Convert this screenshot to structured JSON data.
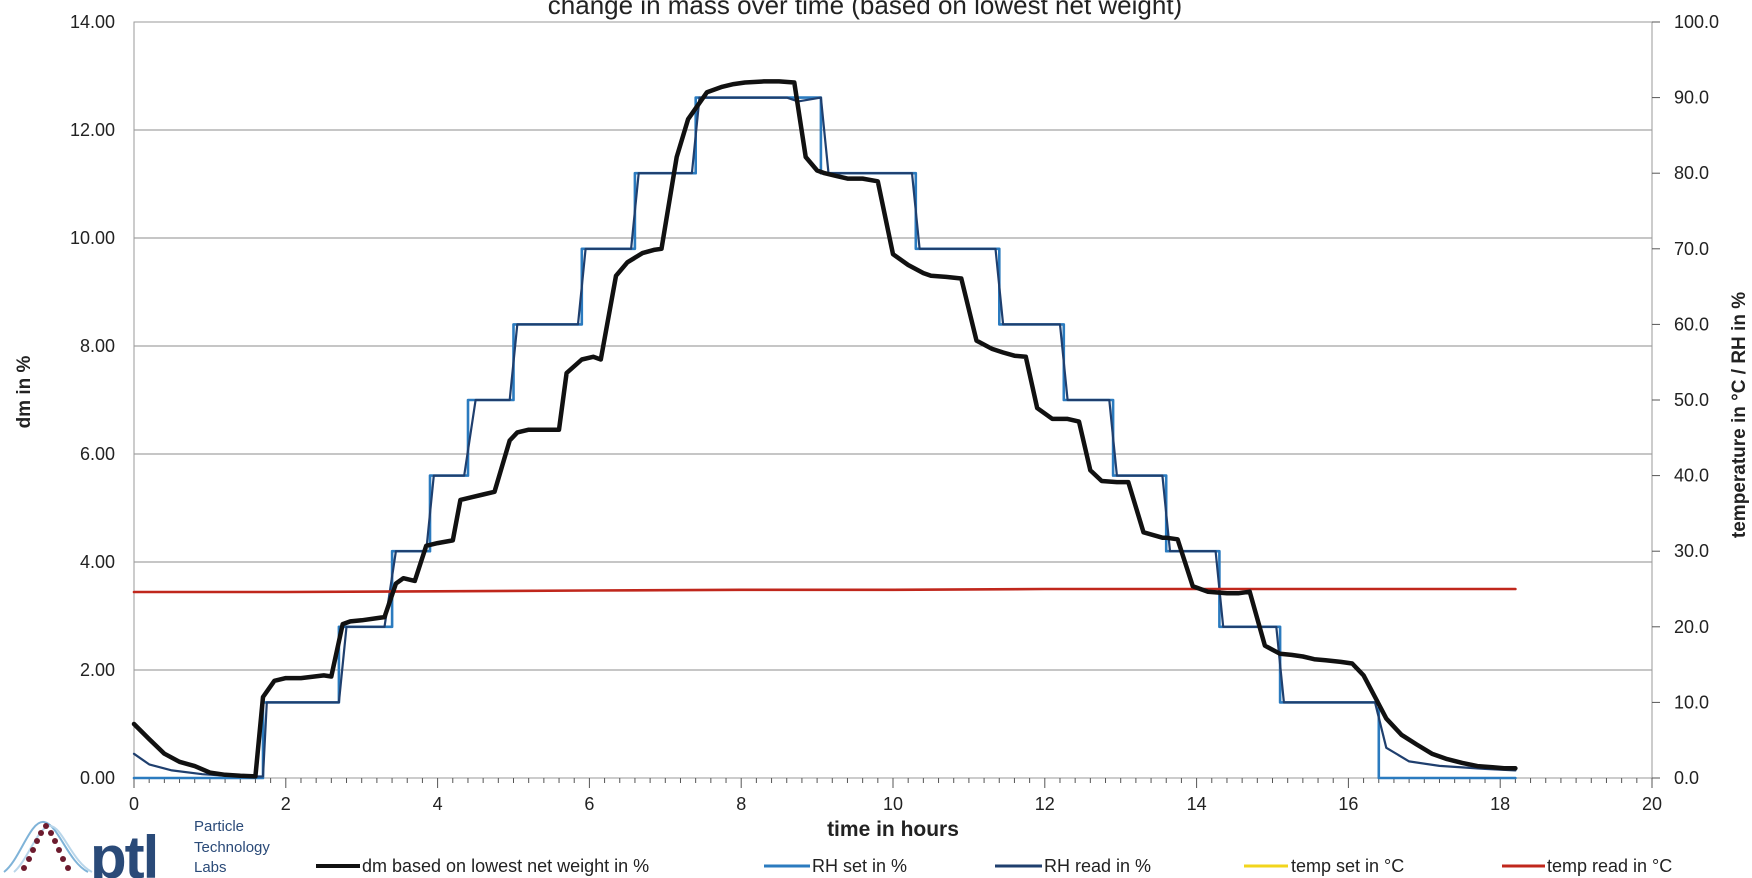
{
  "chart_data": {
    "type": "line",
    "title": "change in mass over time (based on lowest net weight)",
    "xlabel": "time in hours",
    "ylabel_left": "dm in %",
    "ylabel_right": "temperature in °C / RH in %",
    "xlim": [
      0,
      20
    ],
    "ylim_left": [
      0,
      14
    ],
    "ylim_right": [
      0,
      100
    ],
    "x_ticks": [
      "0",
      "2",
      "4",
      "6",
      "8",
      "10",
      "12",
      "14",
      "16",
      "18",
      "20"
    ],
    "y_left_ticks": [
      "0.00",
      "2.00",
      "4.00",
      "6.00",
      "8.00",
      "10.00",
      "12.00",
      "14.00"
    ],
    "y_right_ticks": [
      "0.0",
      "10.0",
      "20.0",
      "30.0",
      "40.0",
      "50.0",
      "60.0",
      "70.0",
      "80.0",
      "90.0",
      "100.0"
    ],
    "grid": true,
    "legend_position": "bottom",
    "series": [
      {
        "name": "dm based on lowest net weight in  %",
        "axis": "left",
        "color": "#111111",
        "x": [
          0,
          0.2,
          0.4,
          0.6,
          0.8,
          1.0,
          1.2,
          1.4,
          1.6,
          1.7,
          1.85,
          2.0,
          2.2,
          2.5,
          2.6,
          2.75,
          2.85,
          3.0,
          3.3,
          3.45,
          3.55,
          3.7,
          3.85,
          4.0,
          4.2,
          4.3,
          4.45,
          4.6,
          4.75,
          4.95,
          5.05,
          5.2,
          5.4,
          5.6,
          5.7,
          5.9,
          6.05,
          6.15,
          6.35,
          6.5,
          6.7,
          6.85,
          6.95,
          7.15,
          7.3,
          7.55,
          7.65,
          7.75,
          7.9,
          8.05,
          8.3,
          8.5,
          8.7,
          8.85,
          9.0,
          9.1,
          9.25,
          9.4,
          9.6,
          9.8,
          10.0,
          10.2,
          10.4,
          10.5,
          10.7,
          10.9,
          11.1,
          11.3,
          11.45,
          11.6,
          11.75,
          11.9,
          12.1,
          12.3,
          12.45,
          12.6,
          12.75,
          12.95,
          13.1,
          13.3,
          13.55,
          13.6,
          13.75,
          13.95,
          14.15,
          14.4,
          14.55,
          14.7,
          14.9,
          15.1,
          15.25,
          15.4,
          15.55,
          15.7,
          15.9,
          16.05,
          16.2,
          16.35,
          16.5,
          16.7,
          16.9,
          17.1,
          17.3,
          17.5,
          17.7,
          17.9,
          18.05,
          18.2
        ],
        "y": [
          1.0,
          0.72,
          0.45,
          0.3,
          0.22,
          0.1,
          0.06,
          0.04,
          0.03,
          1.5,
          1.8,
          1.85,
          1.85,
          1.9,
          1.88,
          2.85,
          2.9,
          2.92,
          2.98,
          3.6,
          3.7,
          3.65,
          4.3,
          4.35,
          4.4,
          5.15,
          5.2,
          5.25,
          5.3,
          6.25,
          6.4,
          6.45,
          6.45,
          6.45,
          7.5,
          7.75,
          7.8,
          7.75,
          9.3,
          9.55,
          9.72,
          9.78,
          9.8,
          11.5,
          12.2,
          12.7,
          12.75,
          12.8,
          12.85,
          12.88,
          12.9,
          12.9,
          12.88,
          11.5,
          11.25,
          11.2,
          11.15,
          11.1,
          11.1,
          11.05,
          9.7,
          9.5,
          9.35,
          9.3,
          9.28,
          9.25,
          8.1,
          7.95,
          7.88,
          7.82,
          7.8,
          6.85,
          6.65,
          6.65,
          6.6,
          5.7,
          5.5,
          5.48,
          5.48,
          4.55,
          4.45,
          4.45,
          4.42,
          3.55,
          3.45,
          3.42,
          3.42,
          3.45,
          2.45,
          2.3,
          2.28,
          2.25,
          2.2,
          2.18,
          2.15,
          2.12,
          1.9,
          1.5,
          1.1,
          0.8,
          0.62,
          0.45,
          0.35,
          0.28,
          0.22,
          0.2,
          0.18,
          0.18
        ]
      },
      {
        "name": "RH set in %",
        "axis": "right",
        "color": "#2b7bbf",
        "x": [
          0,
          1.7,
          1.7,
          2.7,
          2.7,
          3.4,
          3.4,
          3.9,
          3.9,
          4.4,
          4.4,
          5.0,
          5.0,
          5.9,
          5.9,
          6.6,
          6.6,
          7.4,
          7.4,
          8.7,
          8.7,
          9.05,
          9.05,
          10.3,
          10.3,
          11.4,
          11.4,
          12.25,
          12.25,
          12.9,
          12.9,
          13.6,
          13.6,
          14.3,
          14.3,
          15.1,
          15.1,
          16.4,
          16.4,
          18.2
        ],
        "y": [
          0,
          0,
          10,
          10,
          20,
          20,
          30,
          30,
          40,
          40,
          50,
          50,
          60,
          60,
          70,
          70,
          80,
          80,
          90,
          90,
          90,
          90,
          80,
          80,
          70,
          70,
          60,
          60,
          50,
          50,
          40,
          40,
          30,
          30,
          20,
          20,
          10,
          10,
          0,
          0
        ]
      },
      {
        "name": "RH read in %",
        "axis": "right",
        "color": "#1f3f6e",
        "x": [
          0,
          0.2,
          0.5,
          0.9,
          1.2,
          1.5,
          1.7,
          1.75,
          2.2,
          2.7,
          2.8,
          3.3,
          3.45,
          3.85,
          3.95,
          4.35,
          4.5,
          4.95,
          5.05,
          5.85,
          5.95,
          6.55,
          6.65,
          7.35,
          7.45,
          8.0,
          8.6,
          8.75,
          9.05,
          9.15,
          10.25,
          10.35,
          11.35,
          11.45,
          12.2,
          12.3,
          12.85,
          12.95,
          13.55,
          13.65,
          14.25,
          14.35,
          15.05,
          15.15,
          16.35,
          16.5,
          16.8,
          17.2,
          17.8,
          18.2
        ],
        "y": [
          3.2,
          1.8,
          1.0,
          0.5,
          0.3,
          0.2,
          0.2,
          10,
          10,
          10,
          20,
          20,
          30,
          30,
          40,
          40,
          50,
          50,
          60,
          60,
          70,
          70,
          80,
          80,
          90,
          90,
          90,
          89.5,
          90,
          80,
          80,
          70,
          70,
          60,
          60,
          50,
          50,
          40,
          40,
          30,
          30,
          20,
          20,
          10,
          10,
          4,
          2.2,
          1.6,
          1.2,
          1.0
        ]
      },
      {
        "name": "temp set in °C",
        "axis": "right",
        "color": "#f2d51c",
        "x": [],
        "y": []
      },
      {
        "name": "temp read in °C",
        "axis": "right",
        "color": "#c0271c",
        "x": [
          0,
          2,
          4,
          6,
          8,
          10,
          12,
          14,
          16,
          18.2
        ],
        "y": [
          24.6,
          24.6,
          24.7,
          24.8,
          24.9,
          24.9,
          25.0,
          25.0,
          25.0,
          25.0
        ]
      }
    ]
  },
  "logo": {
    "mark": "ptl",
    "line1": "Particle",
    "line2": "Technology",
    "line3": "Labs"
  }
}
